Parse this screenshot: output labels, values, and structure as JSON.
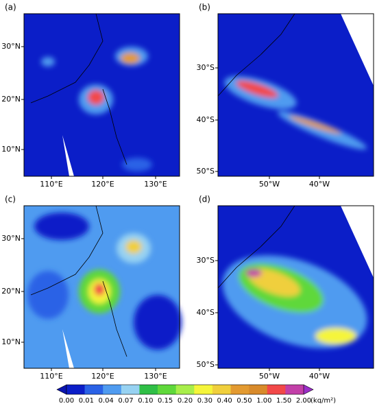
{
  "panels": [
    {
      "label": "(a)",
      "xticks": [
        "110°E",
        "120°E",
        "130°E"
      ],
      "yticks": [
        "30°N",
        "20°N",
        "10°N"
      ]
    },
    {
      "label": "(b)",
      "xticks": [
        "50°W",
        "40°W"
      ],
      "yticks": [
        "30°S",
        "40°S",
        "50°S"
      ]
    },
    {
      "label": "(c)",
      "xticks": [
        "110°E",
        "120°E",
        "130°E"
      ],
      "yticks": [
        "30°N",
        "20°N",
        "10°N"
      ]
    },
    {
      "label": "(d)",
      "xticks": [
        "50°W",
        "40°W"
      ],
      "yticks": [
        "30°S",
        "40°S",
        "50°S"
      ]
    }
  ],
  "colorbar": {
    "levels": [
      "0.00",
      "0.01",
      "0.04",
      "0.07",
      "0.10",
      "0.15",
      "0.20",
      "0.30",
      "0.40",
      "0.50",
      "1.00",
      "1.50",
      "2.00"
    ],
    "colors": [
      "#0b1ec8",
      "#2a62e6",
      "#4f9bf0",
      "#97d2f2",
      "#2fbf46",
      "#5fd83a",
      "#a8ee4a",
      "#f5f53a",
      "#f0cf3c",
      "#e39a30",
      "#d88a2a",
      "#f24848",
      "#c23fa8"
    ],
    "under_color": "#0a14b0",
    "over_color": "#9b2fc8",
    "unit": "(kg/m²)"
  }
}
